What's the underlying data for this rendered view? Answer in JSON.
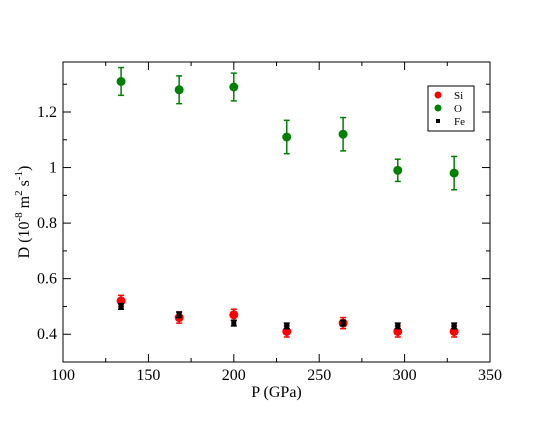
{
  "chart_data": {
    "type": "scatter",
    "title": "",
    "xlabel": "P (GPa)",
    "ylabel_parts": {
      "base": "D (10",
      "exp1": "-8",
      "mid1": " m",
      "exp2": "2",
      "mid2": " s",
      "exp3": "-1",
      "end": ")"
    },
    "xlim": [
      100,
      350
    ],
    "ylim": [
      0.3,
      1.38
    ],
    "x_ticks": [
      100,
      150,
      200,
      250,
      300,
      350
    ],
    "y_ticks": [
      0.4,
      0.6,
      0.8,
      1.0,
      1.2
    ],
    "x_tick_labels": [
      "100",
      "150",
      "200",
      "250",
      "300",
      "350"
    ],
    "y_tick_labels": [
      "0.4",
      "0.6",
      "0.8",
      "1",
      "1.2"
    ],
    "grid": false,
    "legend_position": "top-right",
    "series": [
      {
        "name": "Si",
        "color": "#ff0000",
        "marker": "circle",
        "points": [
          {
            "x": 134,
            "y": 0.52,
            "err": 0.02
          },
          {
            "x": 168,
            "y": 0.46,
            "err": 0.02
          },
          {
            "x": 200,
            "y": 0.47,
            "err": 0.02
          },
          {
            "x": 231,
            "y": 0.41,
            "err": 0.02
          },
          {
            "x": 264,
            "y": 0.44,
            "err": 0.02
          },
          {
            "x": 296,
            "y": 0.41,
            "err": 0.02
          },
          {
            "x": 329,
            "y": 0.41,
            "err": 0.02
          }
        ]
      },
      {
        "name": "O",
        "color": "#008000",
        "marker": "circle",
        "points": [
          {
            "x": 134,
            "y": 1.31,
            "err": 0.05
          },
          {
            "x": 168,
            "y": 1.28,
            "err": 0.05
          },
          {
            "x": 200,
            "y": 1.29,
            "err": 0.05
          },
          {
            "x": 231,
            "y": 1.11,
            "err": 0.06
          },
          {
            "x": 264,
            "y": 1.12,
            "err": 0.06
          },
          {
            "x": 296,
            "y": 0.99,
            "err": 0.04
          },
          {
            "x": 329,
            "y": 0.98,
            "err": 0.06
          }
        ]
      },
      {
        "name": "Fe",
        "color": "#000000",
        "marker": "square",
        "points": [
          {
            "x": 134,
            "y": 0.5,
            "err": 0.01
          },
          {
            "x": 168,
            "y": 0.47,
            "err": 0.01
          },
          {
            "x": 200,
            "y": 0.44,
            "err": 0.01
          },
          {
            "x": 231,
            "y": 0.43,
            "err": 0.01
          },
          {
            "x": 264,
            "y": 0.44,
            "err": 0.01
          },
          {
            "x": 296,
            "y": 0.43,
            "err": 0.01
          },
          {
            "x": 329,
            "y": 0.43,
            "err": 0.01
          }
        ]
      }
    ]
  }
}
